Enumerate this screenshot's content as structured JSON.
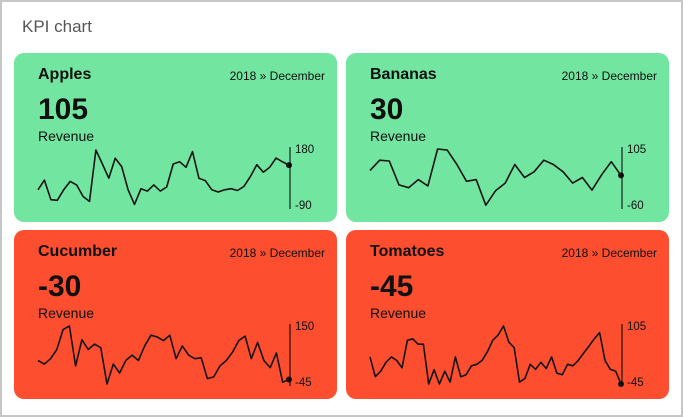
{
  "page": {
    "title": "KPI chart"
  },
  "colors": {
    "positive_bg": "#72e5a0",
    "negative_bg": "#fd4e30",
    "line_color": "#141414",
    "axis_color": "rgba(0,0,0,0.5)",
    "border_color": "#c6c6c6",
    "title_color": "#565656",
    "text_color": "#101010"
  },
  "cards": [
    {
      "name": "Apples",
      "period": "2018 » December",
      "value": "105",
      "metric": "Revenue",
      "axis_max": "180",
      "axis_min": "-90",
      "tone": "positive"
    },
    {
      "name": "Bananas",
      "period": "2018 » December",
      "value": "30",
      "metric": "Revenue",
      "axis_max": "105",
      "axis_min": "-60",
      "tone": "positive"
    },
    {
      "name": "Cucumber",
      "period": "2018 » December",
      "value": "-30",
      "metric": "Revenue",
      "axis_max": "150",
      "axis_min": "-45",
      "tone": "negative"
    },
    {
      "name": "Tomatoes",
      "period": "2018 » December",
      "value": "-45",
      "metric": "Revenue",
      "axis_max": "105",
      "axis_min": "-45",
      "tone": "negative"
    }
  ],
  "chart_data": [
    {
      "type": "line",
      "title": "Apples",
      "metric": "Revenue",
      "period": "2018 » December",
      "current": 105,
      "ylim": [
        -90,
        180
      ],
      "values": [
        -10,
        35,
        -56,
        -59,
        -10,
        29,
        13,
        -41,
        -64,
        175,
        110,
        44,
        137,
        98,
        -10,
        -78,
        -5,
        -16,
        13,
        -16,
        3,
        110,
        121,
        95,
        168,
        44,
        33,
        -10,
        -20,
        -10,
        -5,
        -13,
        6,
        52,
        107,
        72,
        95,
        138,
        120,
        105
      ]
    },
    {
      "type": "line",
      "title": "Bananas",
      "metric": "Revenue",
      "period": "2018 » December",
      "current": 30,
      "ylim": [
        -60,
        105
      ],
      "values": [
        44,
        73,
        71,
        3,
        -5,
        18,
        0,
        105,
        102,
        61,
        13,
        18,
        -55,
        -14,
        8,
        61,
        24,
        40,
        73,
        61,
        40,
        8,
        24,
        -12,
        32,
        69,
        30
      ]
    },
    {
      "type": "line",
      "title": "Cucumber",
      "metric": "Revenue",
      "period": "2018 » December",
      "current": -30,
      "ylim": [
        -45,
        150
      ],
      "values": [
        34,
        22,
        40,
        71,
        138,
        150,
        16,
        104,
        71,
        89,
        77,
        -45,
        22,
        -8,
        34,
        52,
        34,
        83,
        119,
        113,
        101,
        119,
        40,
        83,
        52,
        40,
        43,
        -27,
        -21,
        16,
        34,
        62,
        101,
        116,
        40,
        95,
        34,
        10,
        59,
        -39,
        -30
      ]
    },
    {
      "type": "line",
      "title": "Tomatoes",
      "metric": "Revenue",
      "period": "2018 » December",
      "current": -45,
      "ylim": [
        -45,
        105
      ],
      "values": [
        25,
        -26,
        -12,
        11,
        25,
        16,
        -3,
        68,
        72,
        58,
        58,
        -45,
        -8,
        -45,
        -12,
        -40,
        25,
        -26,
        -21,
        2,
        6,
        16,
        39,
        68,
        82,
        105,
        63,
        49,
        -40,
        -31,
        6,
        -7,
        11,
        -5,
        25,
        -17,
        -21,
        6,
        2,
        16,
        35,
        53,
        72,
        88,
        16,
        -7,
        -12,
        -45
      ]
    }
  ]
}
